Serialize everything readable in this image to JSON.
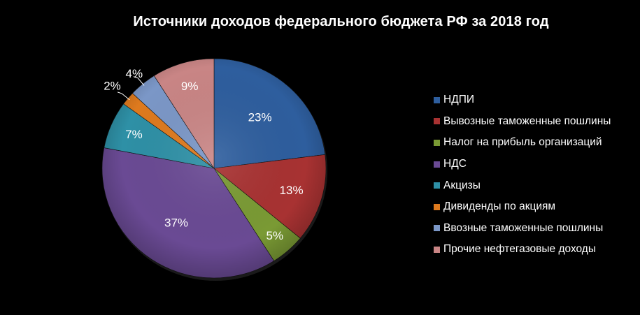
{
  "chart_data": {
    "type": "pie",
    "title": "Источники доходов федерального бюджета РФ за 2018 год",
    "legend_position": "right",
    "slices": [
      {
        "label": "НДПИ",
        "value": 23,
        "value_label": "23%",
        "color": "#2e5e9e"
      },
      {
        "label": "Вывозные таможенные пошлины",
        "value": 13,
        "value_label": "13%",
        "color": "#a83232"
      },
      {
        "label": "Налог на прибыль организаций",
        "value": 5,
        "value_label": "5%",
        "color": "#7a9a34"
      },
      {
        "label": "НДС",
        "value": 37,
        "value_label": "37%",
        "color": "#6a4a94"
      },
      {
        "label": "Акцизы",
        "value": 7,
        "value_label": "7%",
        "color": "#2e90a6"
      },
      {
        "label": "Дивиденды по акциям",
        "value": 2,
        "value_label": "2%",
        "color": "#de7a1e"
      },
      {
        "label": "Ввозные таможенные пошлины",
        "value": 4,
        "value_label": "4%",
        "color": "#7b97c7"
      },
      {
        "label": "Прочие нефтегазовые доходы",
        "value": 9,
        "value_label": "9%",
        "color": "#c98585"
      }
    ]
  }
}
